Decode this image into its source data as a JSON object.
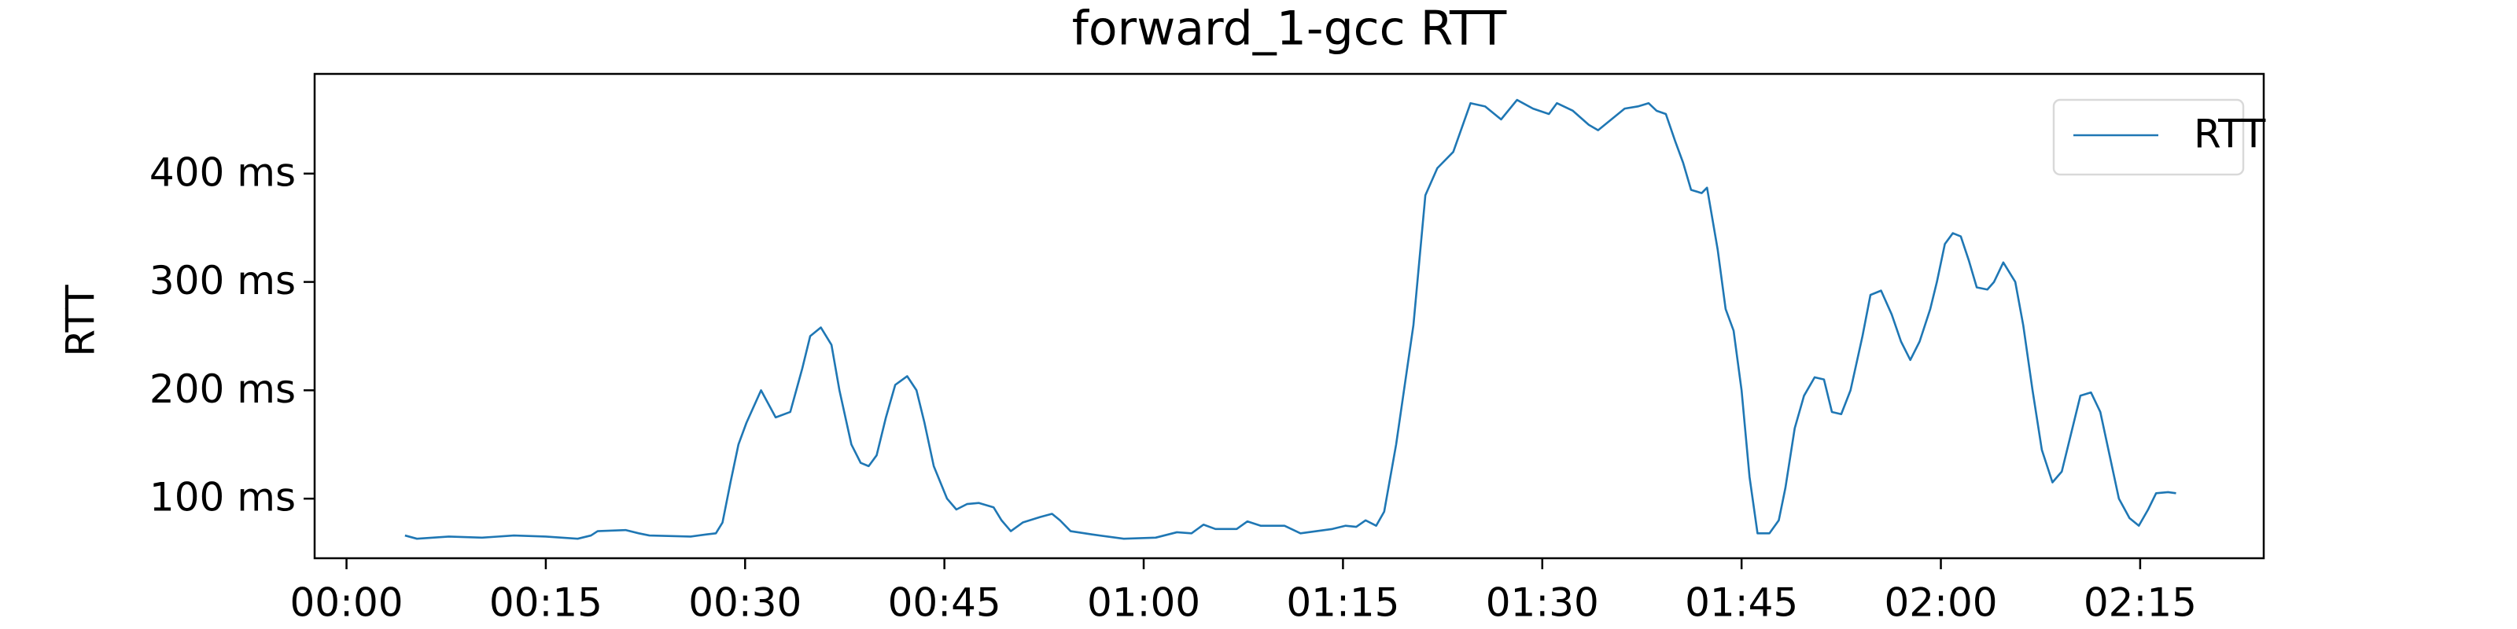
{
  "chart_data": {
    "type": "line",
    "title": "forward_1-gcc RTT",
    "ylabel": "RTT",
    "x": [
      4.4,
      5.3,
      7.7,
      10.2,
      12.6,
      15.0,
      17.4,
      18.4,
      18.9,
      21.0,
      22.0,
      22.8,
      25.9,
      27.1,
      27.8,
      28.3,
      28.9,
      29.5,
      30.1,
      31.2,
      32.3,
      33.4,
      34.3,
      34.9,
      35.7,
      36.5,
      37.1,
      38.0,
      38.7,
      39.3,
      39.9,
      40.6,
      41.3,
      42.2,
      42.9,
      43.5,
      44.2,
      45.2,
      45.9,
      46.7,
      47.6,
      48.7,
      49.3,
      50.0,
      50.9,
      52.2,
      53.1,
      53.7,
      54.5,
      56.1,
      58.5,
      60.9,
      62.5,
      63.6,
      64.5,
      65.4,
      67.0,
      67.8,
      68.8,
      70.6,
      71.8,
      74.2,
      75.2,
      76.0,
      76.7,
      77.5,
      78.1,
      79.0,
      80.3,
      81.2,
      82.1,
      83.3,
      84.6,
      85.7,
      86.9,
      88.1,
      89.3,
      90.5,
      91.1,
      92.3,
      93.5,
      94.2,
      95.4,
      96.2,
      97.2,
      98.0,
      98.6,
      99.3,
      100.0,
      100.6,
      101.2,
      102.0,
      102.4,
      103.2,
      103.8,
      104.4,
      105.0,
      105.6,
      106.2,
      107.1,
      107.8,
      108.3,
      109.0,
      109.7,
      110.5,
      111.2,
      111.8,
      112.5,
      113.2,
      114.1,
      114.7,
      115.5,
      116.3,
      117.0,
      117.7,
      118.4,
      119.2,
      119.7,
      120.3,
      120.9,
      121.5,
      122.1,
      122.7,
      123.5,
      124.0,
      124.7,
      125.6,
      126.2,
      126.9,
      127.6,
      128.4,
      129.1,
      129.8,
      130.5,
      131.3,
      132.0,
      132.7,
      133.4,
      134.2,
      134.9,
      135.6,
      136.2,
      137.1,
      137.7
    ],
    "series": [
      {
        "name": "RTT",
        "color": "#1f77b4",
        "values": [
          66,
          63,
          65,
          64,
          66,
          65,
          63,
          66,
          70,
          71,
          68,
          66,
          65,
          67,
          68,
          78,
          115,
          150,
          170,
          200,
          175,
          180,
          220,
          250,
          258,
          242,
          200,
          150,
          133,
          130,
          140,
          175,
          205,
          213,
          200,
          170,
          130,
          100,
          90,
          95,
          96,
          92,
          80,
          70,
          78,
          83,
          86,
          80,
          70,
          67,
          63,
          64,
          69,
          68,
          76,
          72,
          72,
          79,
          75,
          75,
          68,
          72,
          75,
          74,
          80,
          75,
          88,
          150,
          260,
          380,
          405,
          420,
          465,
          462,
          450,
          468,
          460,
          455,
          465,
          458,
          445,
          440,
          452,
          460,
          462,
          465,
          458,
          455,
          430,
          410,
          385,
          382,
          387,
          330,
          275,
          255,
          200,
          120,
          68,
          68,
          80,
          110,
          165,
          195,
          212,
          210,
          180,
          178,
          200,
          250,
          288,
          292,
          270,
          245,
          228,
          245,
          275,
          300,
          335,
          345,
          342,
          320,
          295,
          293,
          300,
          318,
          300,
          260,
          200,
          145,
          115,
          125,
          160,
          195,
          198,
          180,
          140,
          100,
          82,
          75,
          90,
          105,
          106,
          105
        ]
      }
    ],
    "xlim": [
      -2.4,
      144.3
    ],
    "xticks": [
      {
        "value": 0,
        "label": "00:00"
      },
      {
        "value": 15,
        "label": "00:15"
      },
      {
        "value": 30,
        "label": "00:30"
      },
      {
        "value": 45,
        "label": "00:45"
      },
      {
        "value": 60,
        "label": "01:00"
      },
      {
        "value": 75,
        "label": "01:15"
      },
      {
        "value": 90,
        "label": "01:30"
      },
      {
        "value": 105,
        "label": "01:45"
      },
      {
        "value": 120,
        "label": "02:00"
      },
      {
        "value": 135,
        "label": "02:15"
      }
    ],
    "ylim": [
      45,
      492
    ],
    "yticks": [
      {
        "value": 100,
        "label": "100 ms"
      },
      {
        "value": 200,
        "label": "200 ms"
      },
      {
        "value": 300,
        "label": "300 ms"
      },
      {
        "value": 400,
        "label": "400 ms"
      }
    ],
    "grid": false,
    "legend": "upper right"
  }
}
